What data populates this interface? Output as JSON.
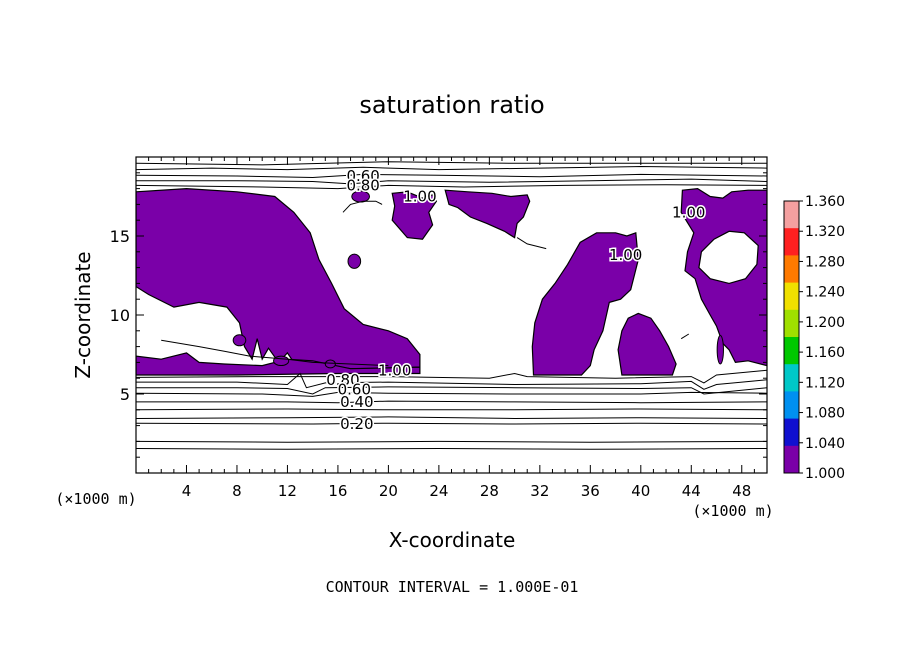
{
  "chart_data": {
    "type": "contour",
    "title": "saturation ratio",
    "xlabel": "X-coordinate",
    "ylabel": "Z-coordinate",
    "x_unit_label": "(×1000 m)",
    "z_unit_label": "(×1000 m)",
    "xlim": [
      0,
      50
    ],
    "zlim": [
      0,
      20
    ],
    "x_ticks": [
      4,
      8,
      12,
      16,
      20,
      24,
      28,
      32,
      36,
      40,
      44,
      48
    ],
    "z_ticks": [
      5,
      10,
      15
    ],
    "contour_interval_text": "CONTOUR INTERVAL = 1.000E-01",
    "fill_threshold": 1.0,
    "fill_color": "#7a00a8",
    "colorbar": {
      "labels": [
        "1.360",
        "1.320",
        "1.280",
        "1.240",
        "1.200",
        "1.160",
        "1.120",
        "1.080",
        "1.040",
        "1.000"
      ],
      "colors": [
        "#f4a0a0",
        "#ff2020",
        "#ff7a00",
        "#f0e000",
        "#a0e000",
        "#00c800",
        "#00c8c8",
        "#0090f0",
        "#1010d0",
        "#7a00a8"
      ]
    },
    "contour_labels": [
      {
        "text": "0.60",
        "x": 18.0,
        "z": 18.8
      },
      {
        "text": "0.80",
        "x": 18.0,
        "z": 18.2
      },
      {
        "text": "1.00",
        "x": 22.5,
        "z": 17.5
      },
      {
        "text": "1.00",
        "x": 43.8,
        "z": 16.5
      },
      {
        "text": "1.00",
        "x": 38.8,
        "z": 13.8
      },
      {
        "text": "1.00",
        "x": 20.5,
        "z": 6.5
      },
      {
        "text": "0.80",
        "x": 16.4,
        "z": 5.9
      },
      {
        "text": "0.60",
        "x": 17.3,
        "z": 5.3
      },
      {
        "text": "0.40",
        "x": 17.5,
        "z": 4.5
      },
      {
        "text": "0.20",
        "x": 17.5,
        "z": 3.1
      }
    ],
    "fill_regions": [
      [
        [
          0,
          17.8
        ],
        [
          4,
          18.0
        ],
        [
          8,
          17.8
        ],
        [
          11,
          17.5
        ],
        [
          12.5,
          16.5
        ],
        [
          13.8,
          15.2
        ],
        [
          14.5,
          13.5
        ],
        [
          15.5,
          12
        ],
        [
          16.5,
          10.4
        ],
        [
          18,
          9.4
        ],
        [
          20,
          9.0
        ],
        [
          21.5,
          8.5
        ],
        [
          22.5,
          7.5
        ],
        [
          22.5,
          6.7
        ],
        [
          20,
          6.6
        ],
        [
          17,
          6.6
        ],
        [
          15,
          6.8
        ],
        [
          14,
          7.0
        ],
        [
          12.5,
          7.0
        ],
        [
          12,
          7.6
        ],
        [
          11.3,
          7.0
        ],
        [
          10.5,
          7.9
        ],
        [
          10,
          7.2
        ],
        [
          9.6,
          8.5
        ],
        [
          9.2,
          7.2
        ],
        [
          8.6,
          8.0
        ],
        [
          8.2,
          9.5
        ],
        [
          7.2,
          10.5
        ],
        [
          5,
          10.8
        ],
        [
          3,
          10.5
        ],
        [
          1,
          11.3
        ],
        [
          0,
          11.8
        ]
      ],
      [
        [
          0,
          6.2
        ],
        [
          8,
          6.2
        ],
        [
          16,
          6.3
        ],
        [
          22.5,
          6.3
        ],
        [
          22.5,
          6.7
        ],
        [
          17,
          6.6
        ],
        [
          14,
          7.1
        ],
        [
          12,
          7.2
        ],
        [
          10,
          6.8
        ],
        [
          7,
          6.9
        ],
        [
          5,
          7.0
        ],
        [
          4,
          7.6
        ],
        [
          2,
          7.2
        ],
        [
          0,
          7.4
        ]
      ],
      [
        [
          20.3,
          17.7
        ],
        [
          21.5,
          17.8
        ],
        [
          22.7,
          17.4
        ],
        [
          23.5,
          17.6
        ],
        [
          23.8,
          17.2
        ],
        [
          23.2,
          16.5
        ],
        [
          23.5,
          15.7
        ],
        [
          22.7,
          14.8
        ],
        [
          21.5,
          14.9
        ],
        [
          20.3,
          16.0
        ],
        [
          20.5,
          16.9
        ]
      ],
      [
        [
          24.5,
          17.9
        ],
        [
          26.3,
          17.8
        ],
        [
          28.2,
          17.7
        ],
        [
          29.7,
          17.5
        ],
        [
          31.0,
          17.6
        ],
        [
          31.2,
          17.2
        ],
        [
          30.7,
          16.2
        ],
        [
          30.2,
          15.8
        ],
        [
          30.0,
          14.9
        ],
        [
          29.2,
          15.3
        ],
        [
          27.8,
          15.8
        ],
        [
          26.5,
          16.2
        ],
        [
          25.5,
          16.8
        ],
        [
          24.8,
          17.0
        ]
      ],
      [
        [
          31.5,
          6.2
        ],
        [
          35.3,
          6.2
        ],
        [
          36.0,
          6.8
        ],
        [
          36.3,
          7.8
        ],
        [
          37.0,
          9.0
        ],
        [
          37.5,
          10.8
        ],
        [
          38.4,
          11.0
        ],
        [
          39.2,
          11.6
        ],
        [
          39.8,
          13.5
        ],
        [
          39.6,
          15.2
        ],
        [
          38.9,
          15.0
        ],
        [
          38.0,
          15.2
        ],
        [
          36.5,
          15.2
        ],
        [
          35.2,
          14.6
        ],
        [
          34.2,
          13.2
        ],
        [
          33.2,
          12.0
        ],
        [
          32.2,
          11.0
        ],
        [
          31.6,
          9.5
        ],
        [
          31.4,
          8.0
        ]
      ],
      [
        [
          38.5,
          6.2
        ],
        [
          42.5,
          6.2
        ],
        [
          42.8,
          6.9
        ],
        [
          42.2,
          8.0
        ],
        [
          41.5,
          9.0
        ],
        [
          40.8,
          9.8
        ],
        [
          39.8,
          10.1
        ],
        [
          39.0,
          9.8
        ],
        [
          38.5,
          9.0
        ],
        [
          38.2,
          7.8
        ]
      ],
      [
        [
          43.3,
          17.9
        ],
        [
          44.5,
          18.0
        ],
        [
          45.5,
          17.5
        ],
        [
          46.5,
          17.4
        ],
        [
          47.2,
          17.8
        ],
        [
          48.5,
          17.9
        ],
        [
          50,
          17.9
        ],
        [
          50,
          6.8
        ],
        [
          48.5,
          7.1
        ],
        [
          47.5,
          7.0
        ],
        [
          47.0,
          7.8
        ],
        [
          46.5,
          8.2
        ],
        [
          46.0,
          9.3
        ],
        [
          45.5,
          10.0
        ],
        [
          44.8,
          11.0
        ],
        [
          44.3,
          12.3
        ],
        [
          43.5,
          12.8
        ],
        [
          43.7,
          14.0
        ],
        [
          44.2,
          15.2
        ],
        [
          43.2,
          16.5
        ]
      ]
    ],
    "holes": [
      [
        [
          44.8,
          14.0
        ],
        [
          45.8,
          14.8
        ],
        [
          47.0,
          15.3
        ],
        [
          48.2,
          15.2
        ],
        [
          49.3,
          14.4
        ],
        [
          49.2,
          13.2
        ],
        [
          48.3,
          12.3
        ],
        [
          47.0,
          12.0
        ],
        [
          45.5,
          12.3
        ],
        [
          44.6,
          13.0
        ]
      ]
    ],
    "small_blobs": [
      {
        "x": 17.3,
        "z": 13.4,
        "rx": 0.5,
        "rz": 0.45
      },
      {
        "x": 17.8,
        "z": 17.5,
        "rx": 0.7,
        "rz": 0.35
      },
      {
        "x": 8.2,
        "z": 8.4,
        "rx": 0.5,
        "rz": 0.35
      },
      {
        "x": 11.5,
        "z": 7.1,
        "rx": 0.6,
        "rz": 0.3
      },
      {
        "x": 15.4,
        "z": 6.9,
        "rx": 0.4,
        "rz": 0.25
      },
      {
        "x": 46.3,
        "z": 7.8,
        "rx": 0.25,
        "rz": 0.9
      }
    ],
    "contour_lines": [
      [
        [
          0,
          19.6
        ],
        [
          10,
          19.5
        ],
        [
          20,
          19.7
        ],
        [
          30,
          19.6
        ],
        [
          40,
          19.6
        ],
        [
          50,
          19.6
        ]
      ],
      [
        [
          0,
          19.2
        ],
        [
          6,
          19.3
        ],
        [
          12,
          19.2
        ],
        [
          18,
          19.35
        ],
        [
          24,
          19.2
        ],
        [
          32,
          19.3
        ],
        [
          40,
          19.4
        ],
        [
          50,
          19.3
        ]
      ],
      [
        [
          0,
          18.85
        ],
        [
          8,
          18.8
        ],
        [
          14,
          18.7
        ],
        [
          18,
          18.9
        ],
        [
          24,
          18.85
        ],
        [
          32,
          18.75
        ],
        [
          40,
          18.9
        ],
        [
          50,
          18.8
        ]
      ],
      [
        [
          0,
          18.5
        ],
        [
          8,
          18.5
        ],
        [
          14,
          18.45
        ],
        [
          17,
          18.3
        ],
        [
          20,
          18.5
        ],
        [
          28,
          18.4
        ],
        [
          36,
          18.5
        ],
        [
          44,
          18.6
        ],
        [
          50,
          18.45
        ]
      ],
      [
        [
          0,
          18.2
        ],
        [
          10,
          18.1
        ],
        [
          16,
          18.0
        ],
        [
          20,
          18.2
        ],
        [
          26,
          18.1
        ],
        [
          34,
          18.2
        ],
        [
          42,
          18.25
        ],
        [
          50,
          18.2
        ]
      ],
      [
        [
          0,
          6.05
        ],
        [
          10,
          6.1
        ],
        [
          20,
          6.1
        ],
        [
          28,
          6.0
        ],
        [
          30,
          6.3
        ],
        [
          31,
          6.1
        ],
        [
          38,
          6.0
        ],
        [
          44,
          6.1
        ],
        [
          45,
          5.7
        ],
        [
          46,
          6.2
        ],
        [
          50,
          6.5
        ]
      ],
      [
        [
          0,
          5.75
        ],
        [
          8,
          5.75
        ],
        [
          12,
          5.6
        ],
        [
          13,
          6.3
        ],
        [
          13.5,
          5.4
        ],
        [
          15,
          5.7
        ],
        [
          20,
          5.75
        ],
        [
          30,
          5.6
        ],
        [
          40,
          5.65
        ],
        [
          44,
          5.8
        ],
        [
          45,
          5.3
        ],
        [
          46,
          5.6
        ],
        [
          50,
          5.9
        ]
      ],
      [
        [
          0,
          5.4
        ],
        [
          8,
          5.4
        ],
        [
          12,
          5.35
        ],
        [
          14,
          5.0
        ],
        [
          15,
          5.4
        ],
        [
          20,
          5.45
        ],
        [
          30,
          5.4
        ],
        [
          40,
          5.35
        ],
        [
          44,
          5.4
        ],
        [
          45,
          5.0
        ],
        [
          50,
          5.4
        ]
      ],
      [
        [
          0,
          5.05
        ],
        [
          10,
          5.0
        ],
        [
          14,
          4.85
        ],
        [
          16,
          5.1
        ],
        [
          20,
          5.05
        ],
        [
          30,
          5.0
        ],
        [
          40,
          5.0
        ],
        [
          44,
          5.1
        ],
        [
          50,
          5.05
        ]
      ],
      [
        [
          0,
          4.5
        ],
        [
          12,
          4.5
        ],
        [
          16,
          4.45
        ],
        [
          20,
          4.55
        ],
        [
          30,
          4.5
        ],
        [
          40,
          4.45
        ],
        [
          50,
          4.5
        ]
      ],
      [
        [
          0,
          4.0
        ],
        [
          12,
          4.05
        ],
        [
          20,
          4.0
        ],
        [
          30,
          4.0
        ],
        [
          40,
          4.05
        ],
        [
          50,
          4.0
        ]
      ],
      [
        [
          0,
          3.45
        ],
        [
          12,
          3.5
        ],
        [
          20,
          3.55
        ],
        [
          30,
          3.45
        ],
        [
          40,
          3.5
        ],
        [
          50,
          3.45
        ]
      ],
      [
        [
          0,
          3.15
        ],
        [
          14,
          3.1
        ],
        [
          20,
          3.15
        ],
        [
          30,
          3.1
        ],
        [
          40,
          3.15
        ],
        [
          50,
          3.1
        ]
      ],
      [
        [
          0,
          2.0
        ],
        [
          12,
          1.95
        ],
        [
          24,
          2.0
        ],
        [
          36,
          1.95
        ],
        [
          50,
          2.0
        ]
      ],
      [
        [
          0,
          1.55
        ],
        [
          12,
          1.5
        ],
        [
          24,
          1.55
        ],
        [
          36,
          1.5
        ],
        [
          50,
          1.55
        ]
      ],
      [
        [
          2,
          8.4
        ],
        [
          5,
          8.0
        ],
        [
          7,
          7.7
        ],
        [
          9,
          7.4
        ],
        [
          12,
          7.2
        ],
        [
          14,
          7.0
        ],
        [
          17,
          6.9
        ],
        [
          20,
          6.8
        ]
      ],
      [
        [
          16.4,
          16.5
        ],
        [
          17,
          17.0
        ],
        [
          18,
          17.2
        ],
        [
          19,
          17.2
        ],
        [
          19.5,
          17.0
        ]
      ],
      [
        [
          30.2,
          14.9
        ],
        [
          31,
          14.5
        ],
        [
          32.5,
          14.2
        ]
      ],
      [
        [
          43.2,
          8.5
        ],
        [
          43.8,
          8.8
        ]
      ]
    ]
  }
}
